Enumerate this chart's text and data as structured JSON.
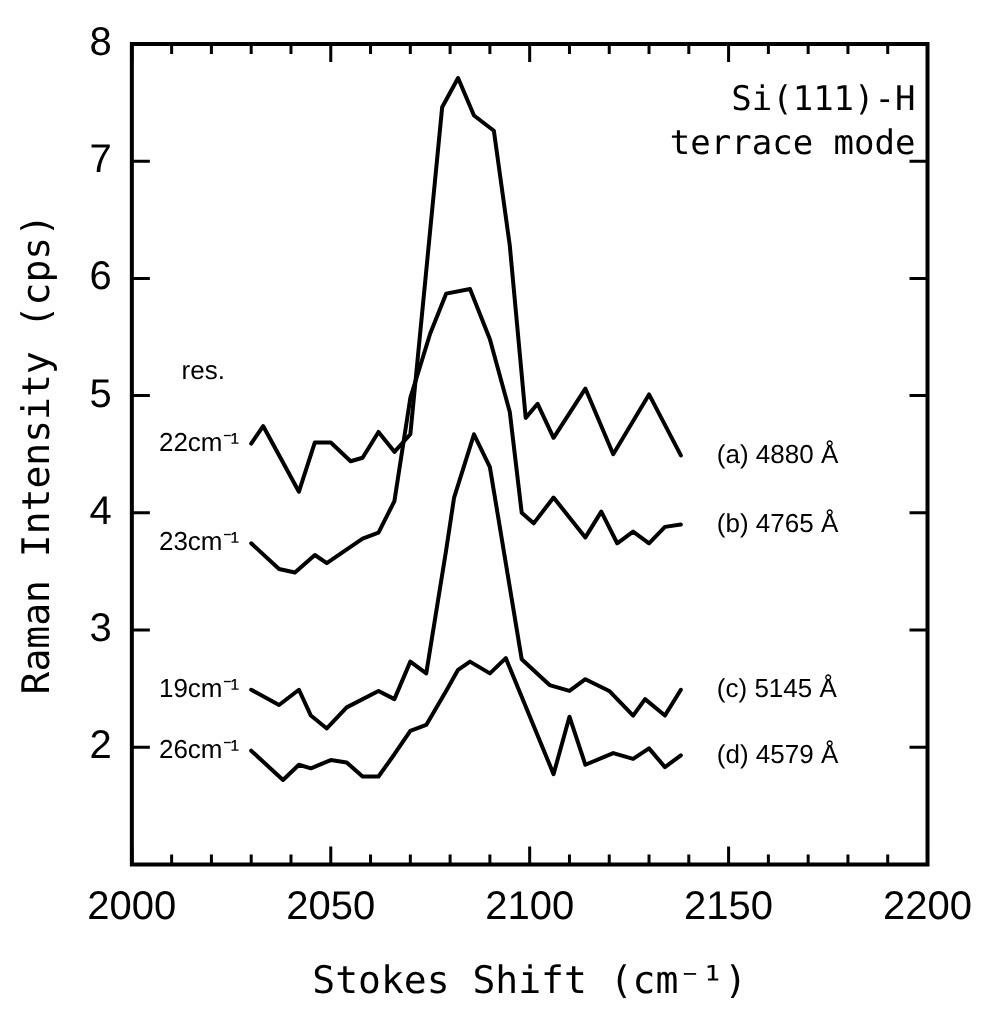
{
  "chart_data": {
    "type": "line",
    "xlabel": "Stokes Shift (cm⁻¹)",
    "ylabel": "Raman Intensity (cps)",
    "xlim": [
      2000,
      2200
    ],
    "xticks": [
      2000,
      {
        "value": 2010,
        "label": null
      },
      {
        "value": 2020,
        "label": null
      },
      {
        "value": 2030,
        "label": null
      },
      {
        "value": 2040,
        "label": null
      },
      2050,
      {
        "value": 2060,
        "label": null
      },
      {
        "value": 2070,
        "label": null
      },
      {
        "value": 2080,
        "label": null
      },
      {
        "value": 2090,
        "label": null
      },
      2100,
      {
        "value": 2110,
        "label": null
      },
      {
        "value": 2120,
        "label": null
      },
      {
        "value": 2130,
        "label": null
      },
      {
        "value": 2140,
        "label": null
      },
      2150,
      {
        "value": 2160,
        "label": null
      },
      {
        "value": 2170,
        "label": null
      },
      {
        "value": 2180,
        "label": null
      },
      {
        "value": 2190,
        "label": null
      },
      2200
    ],
    "ylim": [
      1,
      8
    ],
    "yticks": [
      2,
      3,
      4,
      5,
      6,
      7,
      8
    ],
    "grid": false,
    "legend": false,
    "marker": "none",
    "line_style": "solid",
    "series": [
      {
        "name": "(a) 4880 Å",
        "color": "#000000",
        "x": [
          2030,
          2033,
          2042,
          2046,
          2050,
          2055,
          2058,
          2062,
          2066,
          2070,
          2078,
          2082,
          2086,
          2091,
          2095,
          2099,
          2102,
          2106,
          2114,
          2121,
          2130,
          2138
        ],
        "values": [
          4.59,
          4.74,
          4.18,
          4.6,
          4.6,
          4.44,
          4.47,
          4.69,
          4.52,
          4.67,
          7.46,
          7.71,
          7.39,
          7.26,
          6.28,
          4.81,
          4.93,
          4.64,
          5.06,
          4.5,
          5.01,
          4.49
        ]
      },
      {
        "name": "(b) 4765 Å",
        "color": "#000000",
        "x": [
          2030,
          2037,
          2041,
          2046,
          2049,
          2058,
          2062,
          2066,
          2070,
          2075,
          2079,
          2085,
          2090,
          2095,
          2098,
          2101,
          2106,
          2114,
          2118,
          2122,
          2126,
          2130,
          2134,
          2138
        ],
        "values": [
          3.74,
          3.52,
          3.49,
          3.64,
          3.57,
          3.78,
          3.83,
          4.1,
          4.98,
          5.53,
          5.87,
          5.91,
          5.48,
          4.86,
          4.0,
          3.91,
          4.13,
          3.79,
          4.01,
          3.74,
          3.84,
          3.74,
          3.88,
          3.9
        ]
      },
      {
        "name": "(c) 5145 Å",
        "color": "#000000",
        "x": [
          2030,
          2037,
          2042,
          2045,
          2049,
          2054,
          2062,
          2066,
          2070,
          2074,
          2079,
          2081,
          2086,
          2090,
          2098,
          2105,
          2110,
          2114,
          2120,
          2126,
          2129,
          2134,
          2138
        ],
        "values": [
          2.49,
          2.36,
          2.49,
          2.27,
          2.16,
          2.34,
          2.48,
          2.41,
          2.73,
          2.63,
          3.68,
          4.13,
          4.67,
          4.39,
          2.75,
          2.53,
          2.48,
          2.58,
          2.48,
          2.27,
          2.41,
          2.27,
          2.49
        ]
      },
      {
        "name": "(d) 4579 Å",
        "color": "#000000",
        "x": [
          2030,
          2038,
          2042,
          2045,
          2050,
          2054,
          2058,
          2062,
          2066,
          2070,
          2074,
          2079,
          2082,
          2085,
          2090,
          2094,
          2106,
          2110,
          2114,
          2121,
          2126,
          2130,
          2134,
          2138
        ],
        "values": [
          1.97,
          1.72,
          1.85,
          1.82,
          1.89,
          1.87,
          1.75,
          1.75,
          1.94,
          2.14,
          2.19,
          2.48,
          2.66,
          2.73,
          2.63,
          2.76,
          1.77,
          2.26,
          1.85,
          1.95,
          1.9,
          1.99,
          1.83,
          1.93
        ]
      }
    ],
    "annotations": [
      "Si(111)-H",
      "terrace mode",
      "res.",
      "22cm⁻¹",
      "23cm⁻¹",
      "19cm⁻¹",
      "26cm⁻¹"
    ]
  }
}
